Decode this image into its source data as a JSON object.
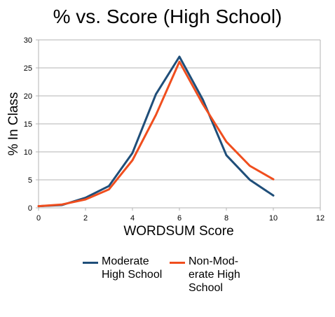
{
  "chart_data": {
    "type": "line",
    "title": "% vs. Score (High School)",
    "xlabel": "WORDSUM Score",
    "ylabel": "% In Class",
    "xlim": [
      0,
      12
    ],
    "ylim": [
      0,
      30
    ],
    "xticks": [
      0,
      2,
      4,
      6,
      8,
      10,
      12
    ],
    "yticks": [
      0,
      5,
      10,
      15,
      20,
      25,
      30
    ],
    "grid": "horizontal",
    "legend_position": "bottom",
    "x": [
      0,
      1,
      2,
      3,
      4,
      5,
      6,
      7,
      8,
      9,
      10
    ],
    "series": [
      {
        "name": "Moderate\nHigh School",
        "color": "#1f4e79",
        "values": [
          0.3,
          0.5,
          1.8,
          3.9,
          9.8,
          20.3,
          27.0,
          19.3,
          9.4,
          5.0,
          2.2
        ]
      },
      {
        "name": "Non-Mod-\nerate High\nSchool",
        "color": "#f04e1e",
        "values": [
          0.3,
          0.6,
          1.5,
          3.3,
          8.5,
          16.6,
          26.1,
          18.5,
          11.8,
          7.5,
          5.1
        ]
      }
    ]
  }
}
